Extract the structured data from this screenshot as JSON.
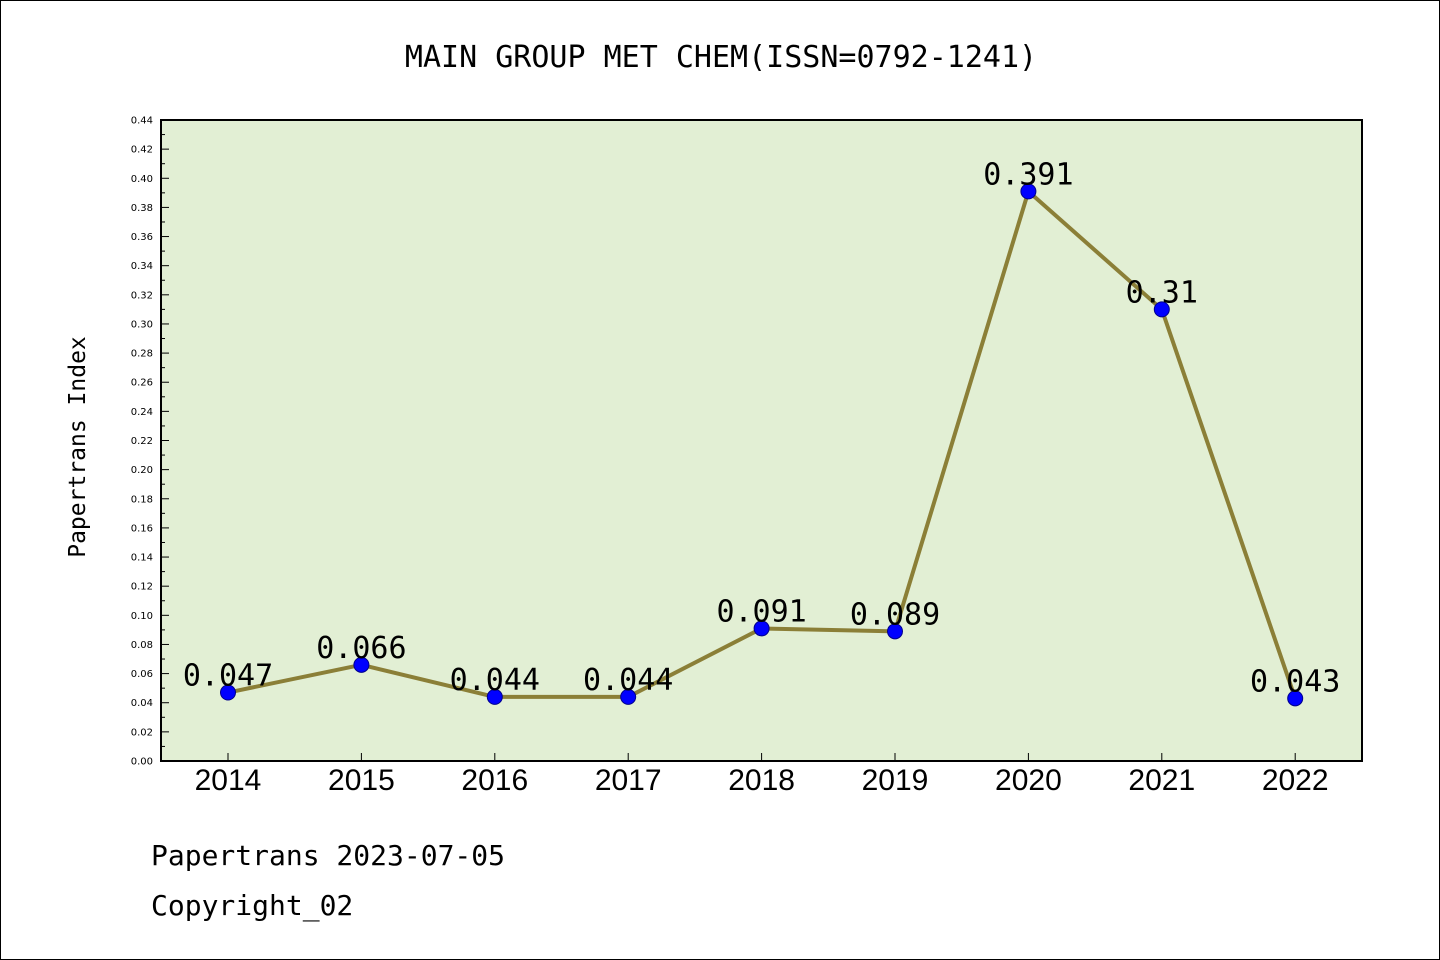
{
  "chart_data": {
    "type": "line",
    "title": "MAIN GROUP MET CHEM(ISSN=0792-1241)",
    "ylabel": "Papertrans Index",
    "xlabel": "",
    "categories": [
      "2014",
      "2015",
      "2016",
      "2017",
      "2018",
      "2019",
      "2020",
      "2021",
      "2022"
    ],
    "values": [
      0.047,
      0.066,
      0.044,
      0.044,
      0.091,
      0.089,
      0.391,
      0.31,
      0.043
    ],
    "value_labels": [
      "0.047",
      "0.066",
      "0.044",
      "0.044",
      "0.091",
      "0.089",
      "0.391",
      "0.31",
      "0.043"
    ],
    "ylim": [
      0,
      0.44
    ],
    "yticks": [
      "0.00",
      "0.02",
      "0.04",
      "0.06",
      "0.08",
      "0.10",
      "0.12",
      "0.14",
      "0.16",
      "0.18",
      "0.20",
      "0.22",
      "0.24",
      "0.26",
      "0.28",
      "0.30",
      "0.32",
      "0.34",
      "0.36",
      "0.38",
      "0.40",
      "0.42",
      "0.44"
    ],
    "grid": false,
    "colors": {
      "plot_background": "#e2efd4",
      "line": "#8b7f37",
      "marker": "#0000ff",
      "axis": "#000000"
    }
  },
  "footer": {
    "line1": "Papertrans 2023-07-05",
    "line2": "Copyright_02"
  }
}
